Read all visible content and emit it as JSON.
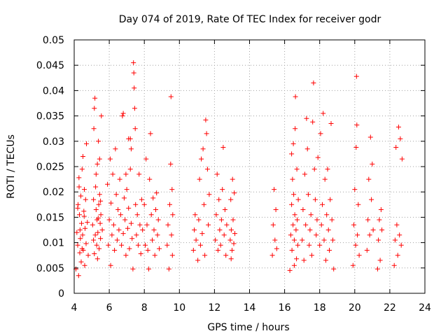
{
  "chart_data": {
    "type": "scatter",
    "title": "Day 074 of 2019, Rate Of TEC Index for receiver godr",
    "xlabel": "GPS time / hours",
    "ylabel": "ROTI / TECUs",
    "xlim": [
      4,
      24
    ],
    "ylim": [
      0,
      0.05
    ],
    "xticks": [
      4,
      6,
      8,
      10,
      12,
      14,
      16,
      18,
      20,
      22,
      24
    ],
    "xtick_labels": [
      "4",
      "6",
      "8",
      "10",
      "12",
      "14",
      "16",
      "18",
      "20",
      "22",
      "24"
    ],
    "yticks": [
      0,
      0.005,
      0.01,
      0.015,
      0.02,
      0.025,
      0.03,
      0.035,
      0.04,
      0.045,
      0.05
    ],
    "ytick_labels": [
      "0",
      "0.005",
      "0.01",
      "0.015",
      "0.02",
      "0.025",
      "0.03",
      "0.035",
      "0.04",
      "0.045",
      "0.05"
    ],
    "grid": true,
    "marker": "plus",
    "color": "#ff0000",
    "series": [
      {
        "name": "ROTI",
        "points": [
          [
            4.1,
            0.0048
          ],
          [
            4.15,
            0.012
          ],
          [
            4.2,
            0.0095
          ],
          [
            4.22,
            0.0175
          ],
          [
            4.25,
            0.0035
          ],
          [
            4.28,
            0.021
          ],
          [
            4.3,
            0.0155
          ],
          [
            4.32,
            0.008
          ],
          [
            4.35,
            0.0108
          ],
          [
            4.38,
            0.0192
          ],
          [
            4.4,
            0.0062
          ],
          [
            4.42,
            0.0138
          ],
          [
            4.45,
            0.0245
          ],
          [
            4.48,
            0.0115
          ],
          [
            4.5,
            0.027
          ],
          [
            4.52,
            0.0085
          ],
          [
            4.55,
            0.0162
          ],
          [
            4.58,
            0.0205
          ],
          [
            4.6,
            0.0055
          ],
          [
            4.62,
            0.0128
          ],
          [
            4.65,
            0.0185
          ],
          [
            4.68,
            0.0098
          ],
          [
            4.7,
            0.0295
          ],
          [
            4.75,
            0.014
          ],
          [
            4.8,
            0.0075
          ],
          [
            4.2,
            0.0168
          ],
          [
            4.33,
            0.0125
          ],
          [
            4.45,
            0.0088
          ],
          [
            4.57,
            0.0152
          ],
          [
            4.27,
            0.0228
          ],
          [
            5.05,
            0.0135
          ],
          [
            5.1,
            0.0185
          ],
          [
            5.12,
            0.0325
          ],
          [
            5.15,
            0.0078
          ],
          [
            5.18,
            0.0385
          ],
          [
            5.2,
            0.0115
          ],
          [
            5.22,
            0.021
          ],
          [
            5.25,
            0.0165
          ],
          [
            5.28,
            0.0095
          ],
          [
            5.3,
            0.0145
          ],
          [
            5.32,
            0.0255
          ],
          [
            5.35,
            0.012
          ],
          [
            5.38,
            0.03
          ],
          [
            5.4,
            0.0175
          ],
          [
            5.42,
            0.0088
          ],
          [
            5.45,
            0.0195
          ],
          [
            5.48,
            0.0138
          ],
          [
            5.5,
            0.0108
          ],
          [
            5.52,
            0.0155
          ],
          [
            5.55,
            0.035
          ],
          [
            5.6,
            0.0125
          ],
          [
            5.15,
            0.0365
          ],
          [
            5.25,
            0.0235
          ],
          [
            5.33,
            0.0068
          ],
          [
            5.45,
            0.0265
          ],
          [
            5.1,
            0.0105
          ],
          [
            5.37,
            0.0148
          ],
          [
            5.5,
            0.0182
          ],
          [
            5.9,
            0.0215
          ],
          [
            5.95,
            0.0095
          ],
          [
            6.0,
            0.0145
          ],
          [
            6.05,
            0.0265
          ],
          [
            6.08,
            0.0055
          ],
          [
            6.1,
            0.0178
          ],
          [
            6.15,
            0.0115
          ],
          [
            6.2,
            0.0235
          ],
          [
            6.25,
            0.0135
          ],
          [
            6.3,
            0.0085
          ],
          [
            6.35,
            0.0285
          ],
          [
            6.4,
            0.0195
          ],
          [
            6.45,
            0.0105
          ],
          [
            6.5,
            0.0165
          ],
          [
            6.55,
            0.0125
          ],
          [
            6.6,
            0.0225
          ],
          [
            6.65,
            0.0155
          ],
          [
            6.7,
            0.0095
          ],
          [
            6.75,
            0.035
          ],
          [
            6.8,
            0.0118
          ],
          [
            6.85,
            0.0188
          ],
          [
            6.9,
            0.0145
          ],
          [
            6.95,
            0.0075
          ],
          [
            7.0,
            0.0205
          ],
          [
            7.05,
            0.0128
          ],
          [
            7.1,
            0.0168
          ],
          [
            7.15,
            0.0088
          ],
          [
            7.2,
            0.0245
          ],
          [
            7.25,
            0.0138
          ],
          [
            7.3,
            0.0108
          ],
          [
            7.35,
            0.0048
          ],
          [
            7.38,
            0.0455
          ],
          [
            7.4,
            0.0435
          ],
          [
            7.42,
            0.0405
          ],
          [
            7.45,
            0.0365
          ],
          [
            7.48,
            0.0325
          ],
          [
            7.5,
            0.0175
          ],
          [
            7.55,
            0.0115
          ],
          [
            7.6,
            0.0155
          ],
          [
            7.65,
            0.0095
          ],
          [
            7.7,
            0.0235
          ],
          [
            7.75,
            0.0135
          ],
          [
            7.8,
            0.0078
          ],
          [
            7.85,
            0.0185
          ],
          [
            7.9,
            0.0125
          ],
          [
            6.8,
            0.0355
          ],
          [
            7.1,
            0.0305
          ],
          [
            7.2,
            0.0305
          ],
          [
            7.25,
            0.0285
          ],
          [
            6.95,
            0.0235
          ],
          [
            8.0,
            0.0175
          ],
          [
            8.05,
            0.0095
          ],
          [
            8.1,
            0.0265
          ],
          [
            8.15,
            0.0135
          ],
          [
            8.2,
            0.0085
          ],
          [
            8.25,
            0.0048
          ],
          [
            8.3,
            0.0225
          ],
          [
            8.35,
            0.0315
          ],
          [
            8.4,
            0.0155
          ],
          [
            8.45,
            0.0105
          ],
          [
            8.5,
            0.0188
          ],
          [
            8.55,
            0.0125
          ],
          [
            8.6,
            0.0075
          ],
          [
            8.65,
            0.0165
          ],
          [
            8.7,
            0.0198
          ],
          [
            8.75,
            0.0115
          ],
          [
            8.8,
            0.0145
          ],
          [
            8.85,
            0.0088
          ],
          [
            9.3,
            0.0095
          ],
          [
            9.35,
            0.0135
          ],
          [
            9.4,
            0.0048
          ],
          [
            9.45,
            0.0175
          ],
          [
            9.5,
            0.0255
          ],
          [
            9.52,
            0.0388
          ],
          [
            9.55,
            0.0115
          ],
          [
            9.58,
            0.0205
          ],
          [
            9.6,
            0.0075
          ],
          [
            9.62,
            0.0155
          ],
          [
            10.8,
            0.0085
          ],
          [
            10.85,
            0.0125
          ],
          [
            10.9,
            0.0155
          ],
          [
            10.95,
            0.0105
          ],
          [
            11.05,
            0.0065
          ],
          [
            11.1,
            0.0145
          ],
          [
            11.15,
            0.0225
          ],
          [
            11.2,
            0.0095
          ],
          [
            11.25,
            0.0265
          ],
          [
            11.3,
            0.0118
          ],
          [
            11.35,
            0.0285
          ],
          [
            11.4,
            0.0175
          ],
          [
            11.45,
            0.0075
          ],
          [
            11.5,
            0.0342
          ],
          [
            11.55,
            0.0315
          ],
          [
            11.6,
            0.0245
          ],
          [
            11.65,
            0.0135
          ],
          [
            11.7,
            0.0195
          ],
          [
            12.05,
            0.0105
          ],
          [
            12.1,
            0.0155
          ],
          [
            12.15,
            0.0235
          ],
          [
            12.2,
            0.0085
          ],
          [
            12.25,
            0.0185
          ],
          [
            12.3,
            0.0125
          ],
          [
            12.35,
            0.0095
          ],
          [
            12.4,
            0.0145
          ],
          [
            12.45,
            0.0205
          ],
          [
            12.5,
            0.0288
          ],
          [
            12.55,
            0.0115
          ],
          [
            12.6,
            0.0165
          ],
          [
            12.65,
            0.0075
          ],
          [
            12.7,
            0.0135
          ],
          [
            12.9,
            0.0105
          ],
          [
            12.93,
            0.0185
          ],
          [
            12.96,
            0.0125
          ],
          [
            13.0,
            0.0085
          ],
          [
            13.03,
            0.0225
          ],
          [
            13.06,
            0.0145
          ],
          [
            13.1,
            0.0098
          ],
          [
            13.13,
            0.0198
          ],
          [
            13.16,
            0.0118
          ],
          [
            12.95,
            0.0068
          ],
          [
            15.3,
            0.0075
          ],
          [
            15.35,
            0.0135
          ],
          [
            15.4,
            0.0205
          ],
          [
            15.45,
            0.0105
          ],
          [
            15.5,
            0.0165
          ],
          [
            15.55,
            0.0088
          ],
          [
            16.3,
            0.0045
          ],
          [
            16.35,
            0.0115
          ],
          [
            16.4,
            0.0175
          ],
          [
            16.42,
            0.0085
          ],
          [
            16.45,
            0.0225
          ],
          [
            16.48,
            0.0135
          ],
          [
            16.5,
            0.0295
          ],
          [
            16.52,
            0.0195
          ],
          [
            16.55,
            0.0105
          ],
          [
            16.58,
            0.0155
          ],
          [
            16.6,
            0.0325
          ],
          [
            16.62,
            0.0388
          ],
          [
            16.65,
            0.0125
          ],
          [
            16.68,
            0.0068
          ],
          [
            16.7,
            0.0245
          ],
          [
            16.72,
            0.0145
          ],
          [
            16.75,
            0.0095
          ],
          [
            16.78,
            0.0185
          ],
          [
            16.4,
            0.0275
          ],
          [
            16.55,
            0.0055
          ],
          [
            17.0,
            0.0105
          ],
          [
            17.05,
            0.0165
          ],
          [
            17.1,
            0.0065
          ],
          [
            17.15,
            0.0235
          ],
          [
            17.2,
            0.0135
          ],
          [
            17.25,
            0.0345
          ],
          [
            17.3,
            0.0285
          ],
          [
            17.35,
            0.0195
          ],
          [
            17.4,
            0.0095
          ],
          [
            17.45,
            0.0125
          ],
          [
            17.5,
            0.0155
          ],
          [
            17.55,
            0.0075
          ],
          [
            17.6,
            0.0338
          ],
          [
            17.65,
            0.0415
          ],
          [
            17.7,
            0.0245
          ],
          [
            17.75,
            0.0185
          ],
          [
            17.8,
            0.0115
          ],
          [
            17.85,
            0.0145
          ],
          [
            17.9,
            0.0268
          ],
          [
            18.0,
            0.0095
          ],
          [
            18.05,
            0.0315
          ],
          [
            18.1,
            0.0135
          ],
          [
            18.15,
            0.0175
          ],
          [
            18.2,
            0.0355
          ],
          [
            18.25,
            0.0105
          ],
          [
            18.3,
            0.0225
          ],
          [
            18.35,
            0.0065
          ],
          [
            18.4,
            0.0155
          ],
          [
            18.45,
            0.0245
          ],
          [
            18.5,
            0.0125
          ],
          [
            18.55,
            0.0085
          ],
          [
            18.6,
            0.0185
          ],
          [
            18.65,
            0.0335
          ],
          [
            18.7,
            0.0145
          ],
          [
            18.75,
            0.0105
          ],
          [
            18.8,
            0.0048
          ],
          [
            19.9,
            0.0055
          ],
          [
            19.95,
            0.0135
          ],
          [
            20.0,
            0.0205
          ],
          [
            20.05,
            0.0095
          ],
          [
            20.08,
            0.0288
          ],
          [
            20.1,
            0.0428
          ],
          [
            20.12,
            0.0332
          ],
          [
            20.15,
            0.0115
          ],
          [
            20.2,
            0.0175
          ],
          [
            20.25,
            0.0075
          ],
          [
            20.7,
            0.0085
          ],
          [
            20.75,
            0.0145
          ],
          [
            20.8,
            0.0225
          ],
          [
            20.85,
            0.0115
          ],
          [
            20.9,
            0.0308
          ],
          [
            20.95,
            0.0185
          ],
          [
            21.0,
            0.0255
          ],
          [
            21.05,
            0.0125
          ],
          [
            21.3,
            0.0048
          ],
          [
            21.35,
            0.0105
          ],
          [
            21.4,
            0.0145
          ],
          [
            21.45,
            0.0065
          ],
          [
            21.5,
            0.0165
          ],
          [
            21.55,
            0.0125
          ],
          [
            22.25,
            0.0055
          ],
          [
            22.3,
            0.0105
          ],
          [
            22.35,
            0.0288
          ],
          [
            22.4,
            0.0135
          ],
          [
            22.45,
            0.0075
          ],
          [
            22.5,
            0.0328
          ],
          [
            22.55,
            0.0115
          ],
          [
            22.6,
            0.0305
          ],
          [
            22.65,
            0.0095
          ],
          [
            22.7,
            0.0265
          ]
        ]
      }
    ]
  }
}
